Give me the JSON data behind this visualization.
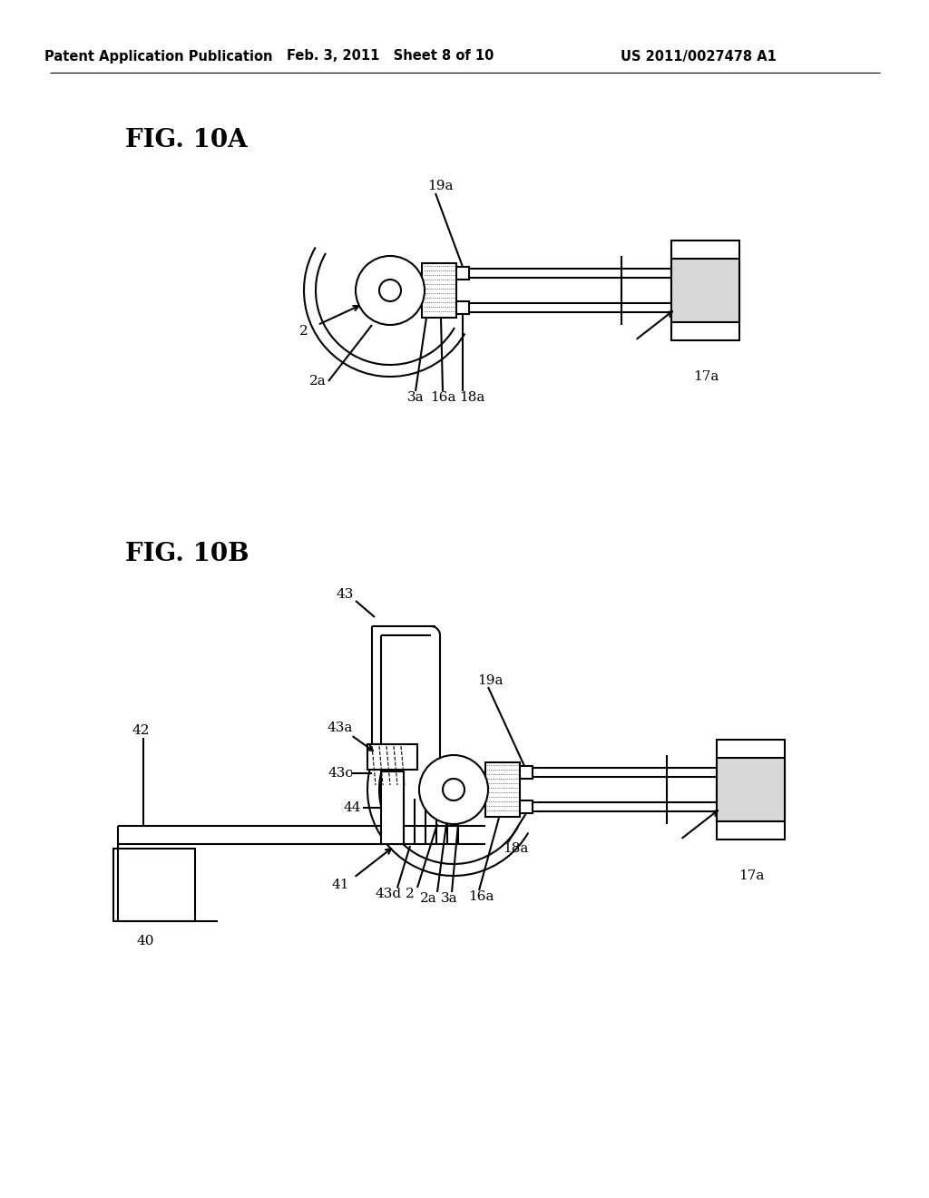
{
  "bg_color": "#ffffff",
  "header_left": "Patent Application Publication",
  "header_center": "Feb. 3, 2011   Sheet 8 of 10",
  "header_right": "US 2011/0027478 A1",
  "fig_label_A": "FIG. 10A",
  "fig_label_B": "FIG. 10B",
  "line_color": "#000000",
  "line_width": 1.5,
  "fig_width": 10.24,
  "fig_height": 13.2
}
